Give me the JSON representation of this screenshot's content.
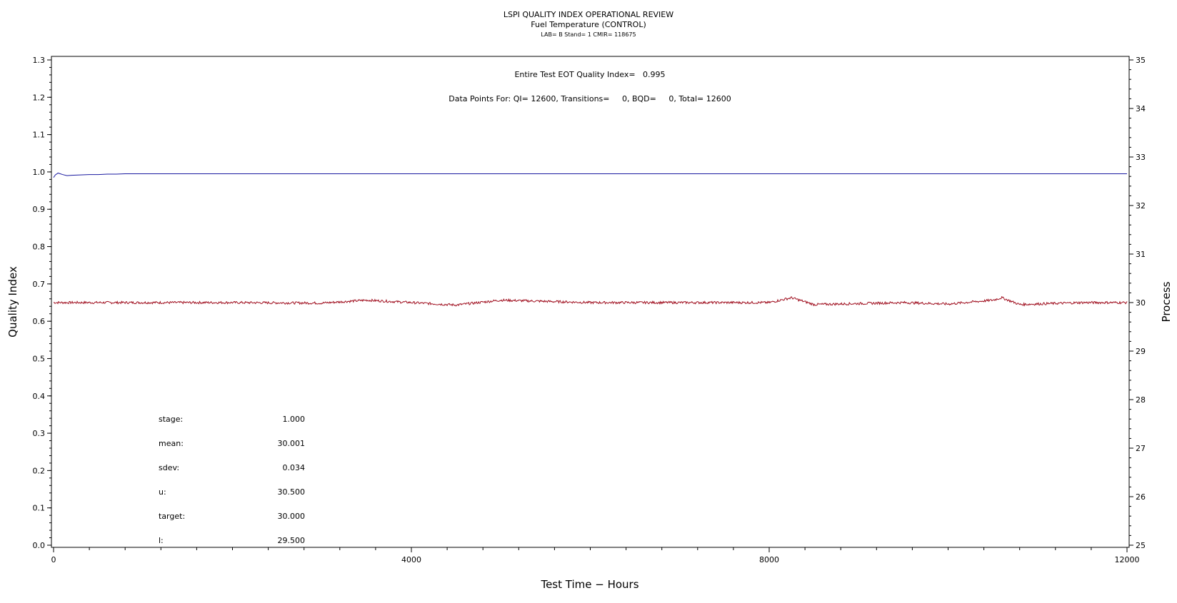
{
  "chart_data": {
    "type": "line",
    "title": "LSPI QUALITY INDEX OPERATIONAL REVIEW",
    "subtitle": "Fuel Temperature (CONTROL)",
    "subtitle2": "LAB= B Stand= 1 CMIR= 118675",
    "xlabel": "Test Time − Hours",
    "ylabel_left": "Quality Index",
    "ylabel_right": "Process",
    "xlim": [
      0,
      12000
    ],
    "ylim_left": [
      0.0,
      1.3
    ],
    "ylim_right": [
      25,
      35
    ],
    "x_ticks": [
      "0",
      "4000",
      "8000",
      "12000"
    ],
    "y_left_ticks": [
      "0.0",
      "0.1",
      "0.2",
      "0.3",
      "0.4",
      "0.5",
      "0.6",
      "0.7",
      "0.8",
      "0.9",
      "1.0",
      "1.1",
      "1.2",
      "1.3"
    ],
    "y_right_ticks": [
      "25",
      "26",
      "27",
      "28",
      "29",
      "30",
      "31",
      "32",
      "33",
      "34",
      "35"
    ],
    "annotation_eot": "Entire Test EOT Quality Index=   0.995",
    "annotation_points": "Data Points For: QI= 12600, Transitions=     0, BQD=     0, Total= 12600",
    "stats": [
      {
        "label": "stage:",
        "value": "1.000"
      },
      {
        "label": "mean:",
        "value": "30.001"
      },
      {
        "label": "sdev:",
        "value": "0.034"
      },
      {
        "label": "u:",
        "value": "30.500"
      },
      {
        "label": "target:",
        "value": "30.000"
      },
      {
        "label": "l:",
        "value": "29.500"
      }
    ],
    "series": [
      {
        "axis": "left",
        "color": "#1a1aa0",
        "x": [
          0,
          20,
          50,
          100,
          150,
          200,
          300,
          400,
          500,
          600,
          700,
          800,
          1000,
          2000,
          4000,
          6000,
          8000,
          10000,
          12000
        ],
        "y": [
          0.985,
          0.992,
          0.997,
          0.993,
          0.99,
          0.991,
          0.992,
          0.993,
          0.993,
          0.994,
          0.994,
          0.995,
          0.995,
          0.995,
          0.995,
          0.995,
          0.995,
          0.995,
          0.995
        ]
      },
      {
        "axis": "right",
        "color": "#a01020",
        "x": [
          0,
          1000,
          2000,
          3000,
          3500,
          4500,
          5000,
          6000,
          7000,
          8000,
          8250,
          8500,
          9500,
          10000,
          10500,
          10600,
          10800,
          11500,
          12000
        ],
        "y": [
          30.0,
          30.0,
          30.0,
          29.99,
          30.05,
          29.95,
          30.05,
          30.0,
          30.0,
          30.0,
          30.1,
          29.96,
          30.0,
          29.97,
          30.05,
          30.1,
          29.96,
          30.0,
          30.0
        ]
      }
    ]
  }
}
